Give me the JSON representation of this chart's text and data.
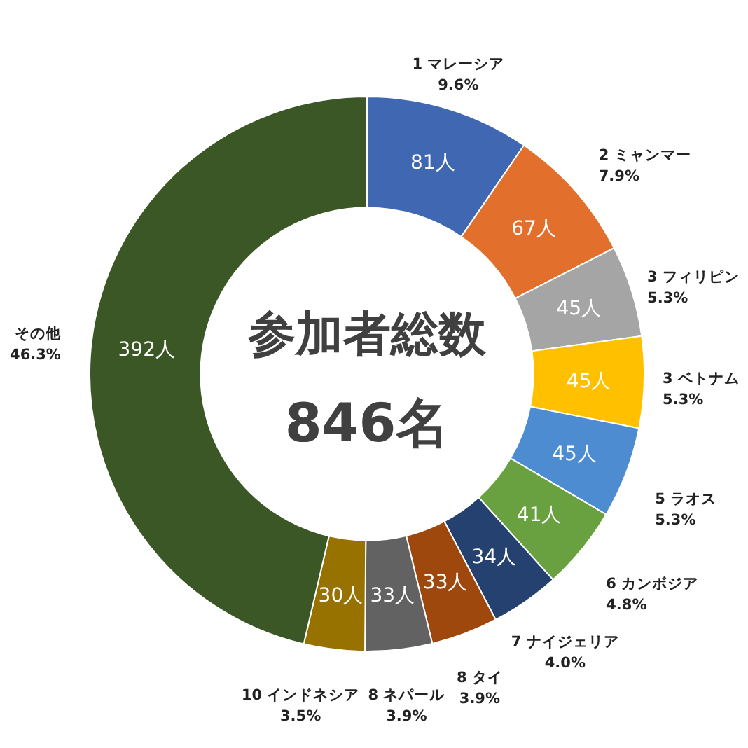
{
  "chart_data": {
    "type": "donut",
    "title": "参加者総数",
    "subtitle": "846名",
    "categories": [
      "1 マレーシア",
      "2 ミャンマー",
      "3 フィリピン",
      "3 ベトナム",
      "5 ラオス",
      "6 カンボジア",
      "7 ナイジェリア",
      "8 タイ",
      "8 ネパール",
      "10 インドネシア",
      "その他"
    ],
    "values": [
      81,
      67,
      45,
      45,
      45,
      41,
      34,
      33,
      33,
      30,
      392
    ],
    "colors": [
      "#4068b2",
      "#e2702c",
      "#a5a5a5",
      "#ffc000",
      "#4d8cd0",
      "#6aa140",
      "#24416f",
      "#9e480e",
      "#626262",
      "#977200",
      "#3b5726"
    ],
    "value_labels": [
      "81人",
      "67人",
      "45人",
      "45人",
      "45人",
      "41人",
      "34人",
      "33人",
      "33人",
      "30人",
      "392人"
    ],
    "annotations": [
      "9.6%",
      "7.9%",
      "5.3%",
      "5.3%",
      "5.3%",
      "4.8%",
      "4.0%",
      "3.9%",
      "3.9%",
      "3.5%",
      "46.3%"
    ]
  }
}
